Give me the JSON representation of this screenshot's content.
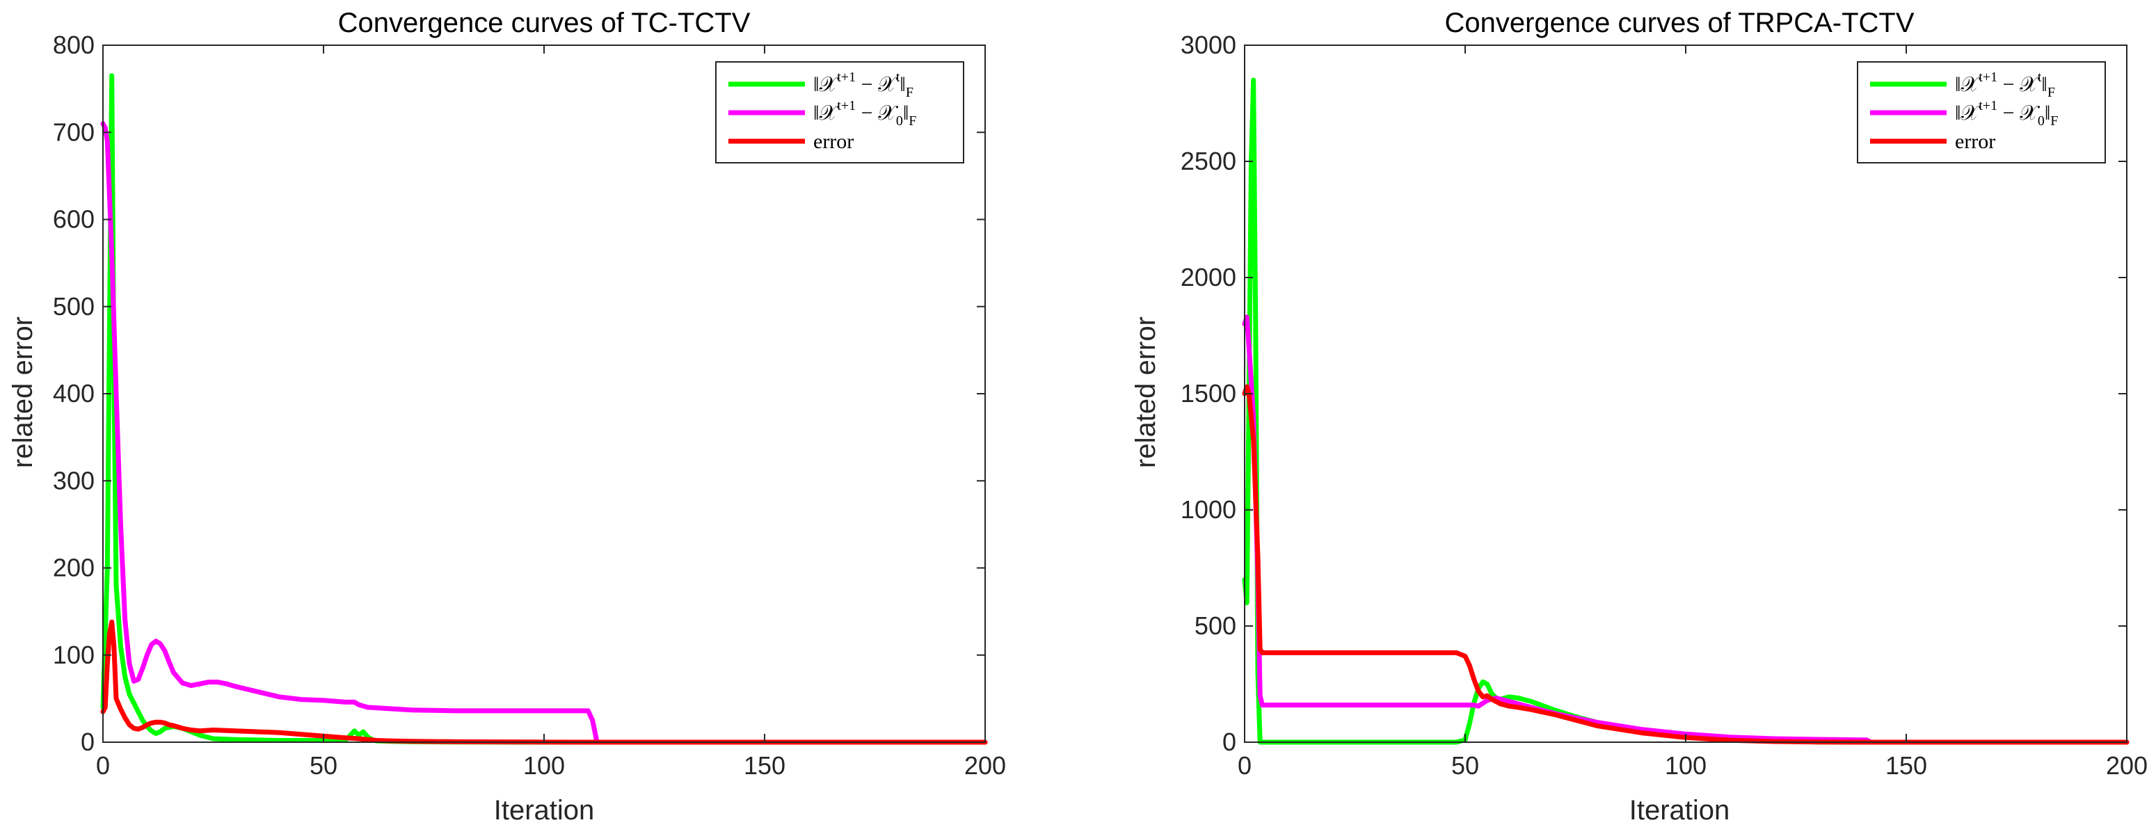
{
  "chart_data": [
    {
      "type": "line",
      "title": "Convergence curves of TC-TCTV",
      "xlabel": "Iteration",
      "ylabel": "related error",
      "xlim": [
        0,
        200
      ],
      "ylim": [
        0,
        800
      ],
      "xticks": [
        0,
        50,
        100,
        150,
        200
      ],
      "yticks": [
        0,
        100,
        200,
        300,
        400,
        500,
        600,
        700,
        800
      ],
      "grid": false,
      "legend_position": "top-right",
      "series": [
        {
          "name": "||X^{t+1} - X^t||_F",
          "legend": {
            "main": "‖𝒳",
            "sup": "t+1",
            "mid": " − 𝒳",
            "sup2": "t",
            "end": "‖",
            "sub": "F"
          },
          "color": "#00ff00",
          "x": [
            0,
            1,
            2,
            2.5,
            3,
            4,
            5,
            6,
            7,
            8,
            9,
            10,
            11,
            12,
            13,
            14,
            16,
            18,
            20,
            22,
            25,
            30,
            35,
            40,
            45,
            50,
            55,
            57,
            58,
            59,
            60,
            61,
            62,
            65,
            70,
            80,
            90,
            100,
            110,
            120,
            150,
            200
          ],
          "y": [
            40,
            200,
            765,
            420,
            180,
            110,
            75,
            55,
            45,
            35,
            25,
            18,
            13,
            10,
            12,
            16,
            18,
            16,
            12,
            8,
            4,
            3,
            2.5,
            2,
            2,
            2,
            2,
            13,
            8,
            12,
            6,
            3,
            1.5,
            1,
            0.5,
            0.2,
            0.1,
            0,
            0,
            0,
            0,
            0
          ]
        },
        {
          "name": "||X^{t+1} - X_0||_F",
          "legend": {
            "main": "‖𝒳",
            "sup": "t+1",
            "mid": " − 𝒳",
            "sub0": "0",
            "end": "‖",
            "sub": "F"
          },
          "color": "#ff00ff",
          "x": [
            0,
            0.5,
            1,
            2,
            3,
            4,
            5,
            6,
            7,
            8,
            9,
            10,
            11,
            12,
            13,
            14,
            15,
            16,
            18,
            20,
            22,
            24,
            26,
            28,
            30,
            35,
            40,
            45,
            50,
            55,
            57,
            58,
            60,
            70,
            80,
            90,
            100,
            105,
            110,
            111,
            112,
            120,
            150,
            200
          ],
          "y": [
            710,
            705,
            690,
            560,
            400,
            250,
            140,
            90,
            70,
            72,
            85,
            100,
            112,
            116,
            113,
            105,
            92,
            80,
            68,
            65,
            67,
            69,
            69,
            67,
            64,
            58,
            52,
            49,
            48,
            46,
            46,
            43,
            40,
            37,
            36,
            36,
            36,
            36,
            36,
            25,
            0,
            0,
            0,
            0
          ]
        },
        {
          "name": "error",
          "legend": {
            "main": "error"
          },
          "color": "#ff0000",
          "x": [
            0,
            0.5,
            1,
            1.5,
            2,
            2.5,
            3,
            4,
            5,
            6,
            7,
            8,
            9,
            10,
            11,
            12,
            13,
            14,
            15,
            16,
            18,
            20,
            22,
            25,
            30,
            35,
            40,
            45,
            50,
            55,
            58,
            60,
            62,
            65,
            70,
            80,
            90,
            100,
            110,
            120,
            150,
            200
          ],
          "y": [
            35,
            40,
            90,
            125,
            138,
            110,
            50,
            38,
            28,
            20,
            16,
            15,
            17,
            20,
            22,
            23,
            23,
            22,
            20,
            19,
            16,
            14,
            13,
            14,
            13,
            12,
            11,
            9,
            7,
            5,
            4,
            3,
            2,
            1.5,
            1,
            0.5,
            0.3,
            0.1,
            0,
            0,
            0,
            0
          ]
        }
      ]
    },
    {
      "type": "line",
      "title": "Convergence curves of TRPCA-TCTV",
      "xlabel": "Iteration",
      "ylabel": "related error",
      "xlim": [
        0,
        200
      ],
      "ylim": [
        0,
        3000
      ],
      "xticks": [
        0,
        50,
        100,
        150,
        200
      ],
      "yticks": [
        0,
        500,
        1000,
        1500,
        2000,
        2500,
        3000
      ],
      "grid": false,
      "legend_position": "top-right",
      "series": [
        {
          "name": "||X^{t+1} - X^t||_F",
          "legend": {
            "main": "‖𝒳",
            "sup": "t+1",
            "mid": " − 𝒳",
            "sup2": "t",
            "end": "‖",
            "sub": "F"
          },
          "color": "#00ff00",
          "x": [
            0,
            0.5,
            1,
            1.5,
            2,
            2.5,
            3,
            3.5,
            4,
            5,
            10,
            20,
            30,
            40,
            48,
            50,
            51,
            52,
            53,
            54,
            55,
            56,
            57,
            58,
            60,
            62,
            65,
            70,
            75,
            80,
            90,
            100,
            110,
            120,
            130,
            140,
            150,
            160,
            170,
            180,
            190,
            200
          ],
          "y": [
            700,
            600,
            1500,
            2500,
            2850,
            1800,
            300,
            0,
            0,
            0,
            0,
            0,
            0,
            0,
            0,
            10,
            80,
            170,
            230,
            260,
            250,
            210,
            190,
            185,
            195,
            190,
            175,
            140,
            110,
            85,
            45,
            22,
            10,
            4,
            1,
            0,
            0,
            0,
            0,
            0,
            0,
            0
          ]
        },
        {
          "name": "||X^{t+1} - X_0||_F",
          "legend": {
            "main": "‖𝒳",
            "sup": "t+1",
            "mid": " − 𝒳",
            "sub0": "0",
            "end": "‖",
            "sub": "F"
          },
          "color": "#ff00ff",
          "x": [
            0,
            0.5,
            1,
            2,
            3,
            3.5,
            4,
            5,
            10,
            20,
            30,
            40,
            50,
            52,
            53,
            55,
            57,
            60,
            65,
            70,
            80,
            90,
            100,
            110,
            120,
            130,
            140,
            141,
            142,
            150,
            200
          ],
          "y": [
            1800,
            1830,
            1700,
            1400,
            700,
            200,
            160,
            160,
            160,
            160,
            160,
            160,
            160,
            160,
            155,
            180,
            190,
            175,
            150,
            125,
            85,
            55,
            35,
            22,
            15,
            12,
            10,
            10,
            0,
            0,
            0
          ]
        },
        {
          "name": "error",
          "legend": {
            "main": "error"
          },
          "color": "#ff0000",
          "x": [
            0,
            0.5,
            1,
            2,
            3,
            3.5,
            4,
            5,
            10,
            20,
            30,
            40,
            48,
            50,
            51,
            52,
            53,
            54,
            55,
            56,
            58,
            60,
            62,
            65,
            70,
            75,
            80,
            90,
            100,
            110,
            120,
            130,
            140,
            150,
            200
          ],
          "y": [
            1500,
            1530,
            1500,
            1300,
            800,
            400,
            385,
            385,
            385,
            385,
            385,
            385,
            385,
            370,
            330,
            270,
            220,
            195,
            200,
            185,
            165,
            155,
            150,
            140,
            120,
            95,
            70,
            40,
            20,
            8,
            3,
            1,
            0,
            0,
            0
          ]
        }
      ]
    }
  ]
}
